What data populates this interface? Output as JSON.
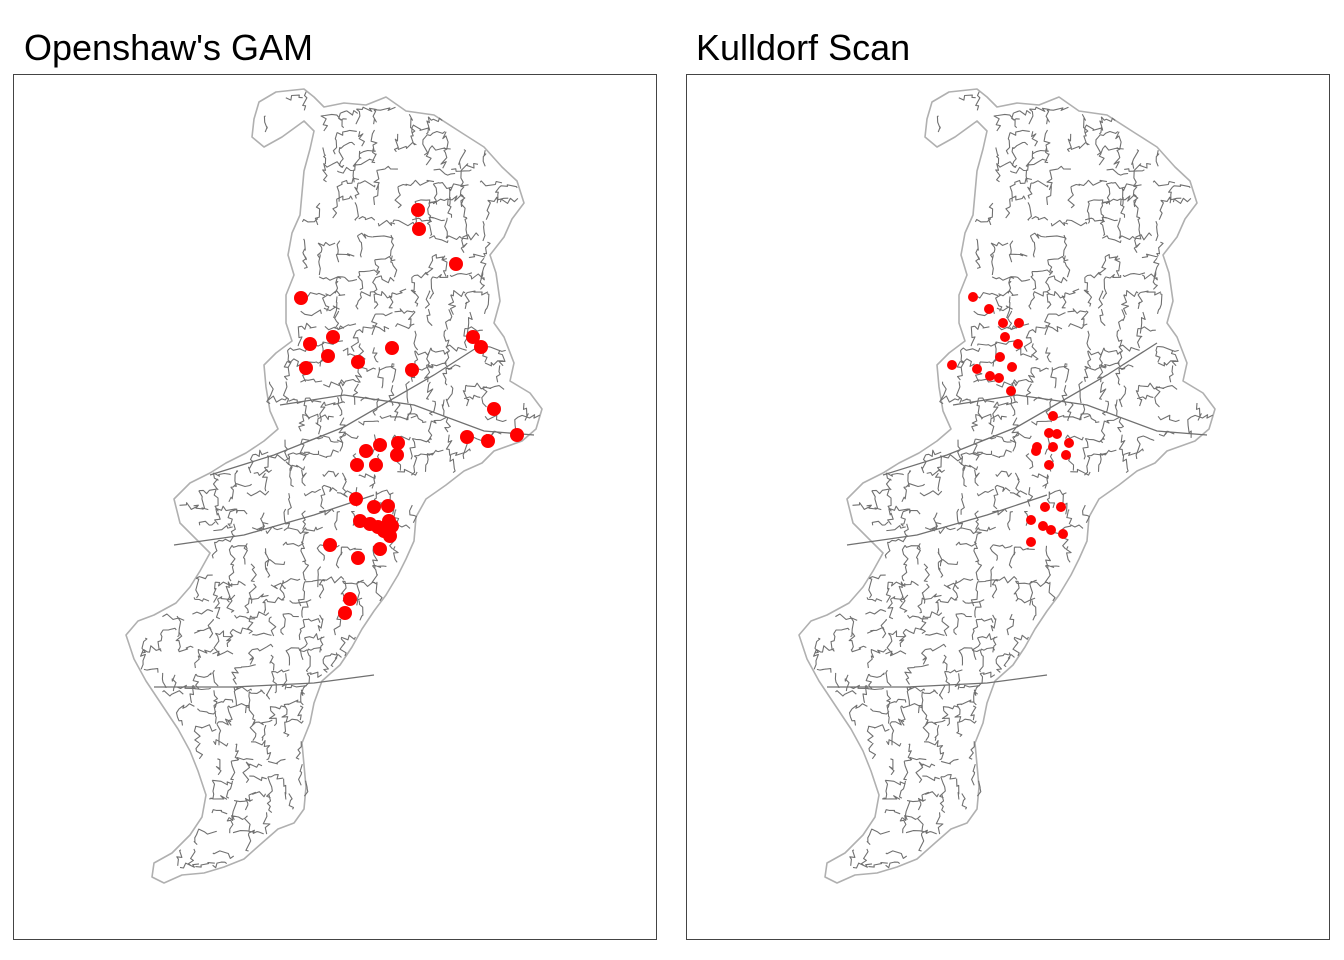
{
  "maps": [
    {
      "title": "Openshaw's GAM",
      "point_color": "#ff0000",
      "cluster_points": 38
    },
    {
      "title": "Kulldorf Scan",
      "point_color": "#ff0000",
      "cluster_points": 35
    }
  ],
  "colors": {
    "boundary": "#707070",
    "outer_boundary": "#b0b0b0",
    "frame": "#444444",
    "points": "#ff0000"
  }
}
